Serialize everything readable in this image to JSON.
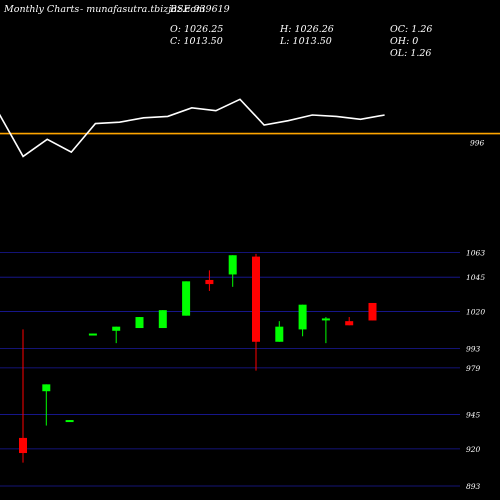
{
  "header": {
    "title": "Monthly Charts",
    "site": "- munafasutra.tbizjaz.com",
    "symbol": "BSE 939619",
    "open": "O: 1026.25",
    "high": "H: 1026.26",
    "oc": "OC: 1.26",
    "close": "C: 1013.50",
    "low": "L: 1013.50",
    "oh": "OH: 0",
    "ol": "OL: 1.26"
  },
  "colors": {
    "background": "#000000",
    "up": "#00ff00",
    "down": "#ff0000",
    "grid": "#1a1a9e",
    "reference_line": "#ffa500",
    "indicator_line": "#ffffff"
  },
  "chart_data": [
    {
      "type": "line",
      "name": "indicator",
      "reference_value": 996,
      "reference_label": "996",
      "values": [
        1010,
        980,
        992,
        983,
        1003,
        1004,
        1007,
        1008,
        1014,
        1012,
        1020,
        1002,
        1005,
        1009,
        1008,
        1006,
        1009
      ]
    },
    {
      "type": "candlestick",
      "ylim": [
        893,
        1075
      ],
      "grid": true,
      "yticks": [
        {
          "value": 1063,
          "label": "1063"
        },
        {
          "value": 1045,
          "label": "1045"
        },
        {
          "value": 1020,
          "label": "1020"
        },
        {
          "value": 993,
          "label": "993"
        },
        {
          "value": 979,
          "label": "979"
        },
        {
          "value": 945,
          "label": "945"
        },
        {
          "value": 920,
          "label": "920"
        },
        {
          "value": 893,
          "label": "893"
        }
      ],
      "candles": [
        {
          "o": 928,
          "h": 1007,
          "l": 910,
          "c": 917
        },
        {
          "o": 962,
          "h": 967,
          "l": 937,
          "c": 967
        },
        {
          "o": 941,
          "h": 941,
          "l": 940,
          "c": 941
        },
        {
          "o": 1004,
          "h": 1004,
          "l": 1003,
          "c": 1004
        },
        {
          "o": 1006,
          "h": 1009,
          "l": 997,
          "c": 1009
        },
        {
          "o": 1008,
          "h": 1016,
          "l": 1008,
          "c": 1016
        },
        {
          "o": 1008,
          "h": 1021,
          "l": 1008,
          "c": 1021
        },
        {
          "o": 1017,
          "h": 1042,
          "l": 1017,
          "c": 1042
        },
        {
          "o": 1043,
          "h": 1050,
          "l": 1035,
          "c": 1040
        },
        {
          "o": 1047,
          "h": 1061,
          "l": 1038,
          "c": 1061
        },
        {
          "o": 1060,
          "h": 1062,
          "l": 977,
          "c": 998
        },
        {
          "o": 998,
          "h": 1013,
          "l": 998,
          "c": 1009
        },
        {
          "o": 1007,
          "h": 1025,
          "l": 1002,
          "c": 1025
        },
        {
          "o": 1015,
          "h": 1016,
          "l": 997,
          "c": 1015
        },
        {
          "o": 1013,
          "h": 1016,
          "l": 1010,
          "c": 1010
        },
        {
          "o": 1026.25,
          "h": 1026.26,
          "l": 1013.5,
          "c": 1013.5
        }
      ]
    }
  ]
}
